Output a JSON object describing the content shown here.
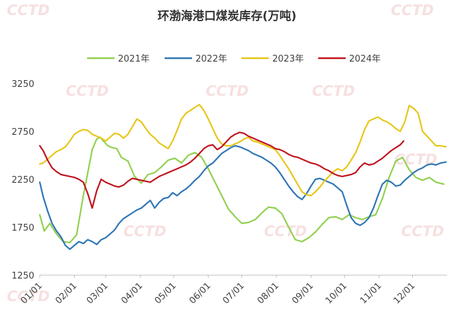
{
  "watermark": "CCTD",
  "colors": {
    "2021年": "#92d050",
    "2022年": "#2e75b6",
    "2023年": "#e6c619",
    "2024年": "#c0141e",
    "axis": "#bfbfbf",
    "text": "#404040",
    "watermark": "#f2c8c8"
  },
  "chart_data": {
    "type": "line",
    "title": "环渤海港口煤炭库存(万吨)",
    "xlabel": "",
    "ylabel": "",
    "ylim": [
      1250,
      3250
    ],
    "yticks": [
      1250,
      1750,
      2250,
      2750,
      3250
    ],
    "xticks": [
      "01/01",
      "02/01",
      "03/01",
      "04/01",
      "05/01",
      "06/01",
      "07/01",
      "08/01",
      "09/01",
      "10/01",
      "11/01",
      "12/01"
    ],
    "legend_position": "top",
    "grid": false,
    "x_unit": "day-of-year",
    "series": [
      {
        "name": "2021年",
        "x": [
          1,
          5,
          10,
          16,
          22,
          28,
          34,
          40,
          44,
          48,
          52,
          55,
          58,
          62,
          66,
          70,
          74,
          80,
          86,
          92,
          98,
          104,
          110,
          116,
          122,
          128,
          134,
          140,
          146,
          152,
          158,
          164,
          170,
          176,
          182,
          188,
          194,
          200,
          206,
          212,
          218,
          224,
          230,
          236,
          242,
          248,
          254,
          260,
          266,
          272,
          278,
          284,
          290,
          296,
          302,
          308,
          314,
          320,
          326,
          332,
          338,
          344,
          350,
          356,
          363
        ],
        "y": [
          1880,
          1710,
          1790,
          1680,
          1600,
          1590,
          1670,
          2080,
          2320,
          2560,
          2670,
          2690,
          2650,
          2600,
          2580,
          2570,
          2480,
          2440,
          2280,
          2210,
          2300,
          2320,
          2380,
          2450,
          2470,
          2420,
          2500,
          2530,
          2480,
          2360,
          2220,
          2080,
          1940,
          1860,
          1790,
          1800,
          1830,
          1900,
          1960,
          1950,
          1890,
          1750,
          1620,
          1600,
          1640,
          1700,
          1780,
          1850,
          1860,
          1830,
          1880,
          1850,
          1830,
          1860,
          1880,
          2050,
          2270,
          2440,
          2480,
          2350,
          2270,
          2240,
          2270,
          2220,
          2200
        ]
      },
      {
        "name": "2022年",
        "x": [
          1,
          4,
          8,
          12,
          16,
          20,
          24,
          28,
          32,
          36,
          40,
          44,
          48,
          52,
          56,
          60,
          64,
          68,
          72,
          76,
          80,
          84,
          88,
          92,
          96,
          100,
          104,
          108,
          112,
          116,
          120,
          124,
          128,
          132,
          136,
          140,
          144,
          148,
          152,
          156,
          160,
          164,
          168,
          172,
          176,
          180,
          184,
          188,
          192,
          196,
          200,
          204,
          208,
          212,
          216,
          220,
          224,
          228,
          232,
          236,
          240,
          244,
          248,
          252,
          256,
          260,
          264,
          268,
          272,
          276,
          280,
          284,
          288,
          292,
          296,
          300,
          304,
          308,
          312,
          316,
          320,
          324,
          328,
          332,
          336,
          340,
          344,
          348,
          352,
          356,
          360,
          365
        ],
        "y": [
          2220,
          2070,
          1920,
          1790,
          1710,
          1650,
          1560,
          1520,
          1560,
          1600,
          1580,
          1620,
          1600,
          1570,
          1620,
          1640,
          1680,
          1720,
          1790,
          1840,
          1870,
          1900,
          1930,
          1950,
          1990,
          2030,
          1950,
          2010,
          2050,
          2060,
          2110,
          2080,
          2120,
          2150,
          2190,
          2240,
          2280,
          2340,
          2390,
          2420,
          2470,
          2520,
          2550,
          2580,
          2600,
          2590,
          2570,
          2550,
          2520,
          2500,
          2480,
          2450,
          2420,
          2380,
          2320,
          2250,
          2180,
          2120,
          2070,
          2040,
          2100,
          2180,
          2250,
          2260,
          2240,
          2220,
          2200,
          2160,
          2120,
          1980,
          1850,
          1790,
          1770,
          1800,
          1850,
          1950,
          2080,
          2200,
          2240,
          2220,
          2180,
          2190,
          2240,
          2280,
          2320,
          2350,
          2370,
          2400,
          2410,
          2400,
          2420,
          2430
        ]
      },
      {
        "name": "2023年",
        "x": [
          1,
          4,
          8,
          12,
          16,
          20,
          24,
          28,
          32,
          36,
          40,
          44,
          48,
          52,
          56,
          60,
          64,
          68,
          72,
          76,
          80,
          84,
          88,
          92,
          96,
          100,
          104,
          108,
          112,
          116,
          120,
          124,
          128,
          132,
          136,
          140,
          144,
          148,
          152,
          156,
          160,
          164,
          168,
          172,
          176,
          180,
          184,
          188,
          192,
          196,
          200,
          204,
          208,
          212,
          216,
          220,
          224,
          228,
          232,
          236,
          240,
          244,
          248,
          252,
          256,
          260,
          264,
          268,
          272,
          276,
          280,
          284,
          288,
          292,
          296,
          300,
          304,
          308,
          312,
          316,
          320,
          324,
          328,
          332,
          336,
          340,
          344,
          348,
          352,
          356,
          360,
          365
        ],
        "y": [
          2410,
          2420,
          2460,
          2500,
          2540,
          2560,
          2590,
          2650,
          2720,
          2750,
          2770,
          2760,
          2720,
          2700,
          2680,
          2650,
          2690,
          2730,
          2720,
          2680,
          2720,
          2800,
          2880,
          2850,
          2780,
          2720,
          2680,
          2630,
          2600,
          2570,
          2650,
          2760,
          2880,
          2940,
          2970,
          3000,
          3030,
          2970,
          2880,
          2780,
          2680,
          2620,
          2600,
          2600,
          2620,
          2640,
          2670,
          2690,
          2650,
          2640,
          2620,
          2600,
          2580,
          2560,
          2500,
          2430,
          2360,
          2280,
          2200,
          2120,
          2090,
          2080,
          2120,
          2170,
          2230,
          2280,
          2330,
          2360,
          2340,
          2380,
          2450,
          2530,
          2640,
          2770,
          2860,
          2880,
          2900,
          2870,
          2850,
          2820,
          2780,
          2750,
          2850,
          3020,
          2990,
          2940,
          2750,
          2700,
          2650,
          2600,
          2600,
          2590
        ]
      },
      {
        "name": "2024年",
        "x": [
          1,
          4,
          8,
          12,
          16,
          20,
          24,
          28,
          32,
          36,
          40,
          44,
          48,
          52,
          56,
          60,
          64,
          68,
          72,
          76,
          80,
          84,
          88,
          92,
          96,
          100,
          104,
          108,
          112,
          116,
          120,
          124,
          128,
          132,
          136,
          140,
          144,
          148,
          152,
          156,
          160,
          164,
          168,
          172,
          176,
          180,
          184,
          188,
          192,
          196,
          200,
          204,
          208,
          212,
          216,
          220,
          224,
          228,
          232,
          236,
          240,
          244,
          248,
          252,
          256,
          260,
          264,
          268,
          272,
          276,
          280,
          284,
          288,
          292,
          296,
          300,
          304,
          308,
          312,
          316,
          320,
          324,
          327
        ],
        "y": [
          2600,
          2550,
          2450,
          2370,
          2330,
          2300,
          2290,
          2280,
          2270,
          2250,
          2220,
          2100,
          1950,
          2130,
          2250,
          2220,
          2200,
          2180,
          2170,
          2190,
          2230,
          2260,
          2250,
          2240,
          2230,
          2220,
          2250,
          2280,
          2300,
          2320,
          2340,
          2360,
          2380,
          2400,
          2430,
          2470,
          2520,
          2570,
          2600,
          2610,
          2560,
          2590,
          2640,
          2690,
          2720,
          2740,
          2730,
          2700,
          2680,
          2660,
          2640,
          2620,
          2600,
          2570,
          2560,
          2540,
          2510,
          2490,
          2480,
          2460,
          2440,
          2420,
          2410,
          2390,
          2360,
          2340,
          2310,
          2290,
          2280,
          2290,
          2300,
          2320,
          2380,
          2420,
          2400,
          2410,
          2440,
          2470,
          2510,
          2550,
          2580,
          2610,
          2650
        ]
      }
    ]
  }
}
